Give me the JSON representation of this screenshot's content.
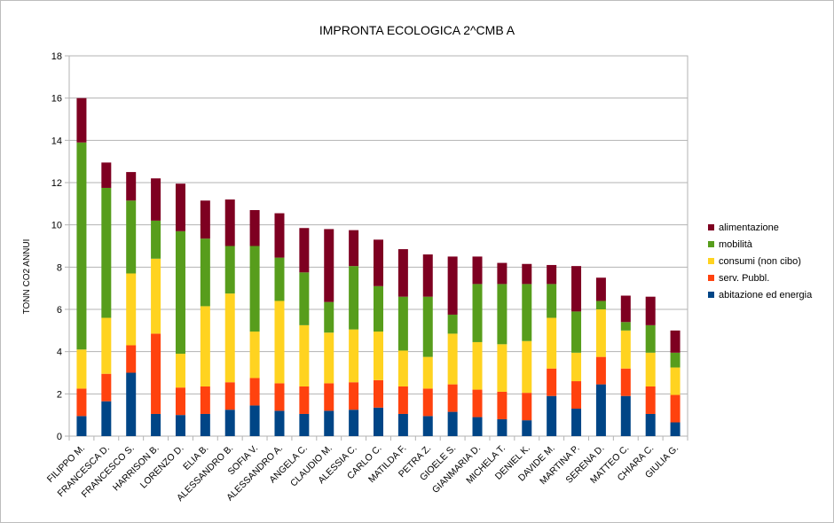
{
  "chart_data": {
    "type": "bar",
    "stacked": true,
    "title": "IMPRONTA ECOLOGICA 2^CMB A",
    "xlabel": "",
    "ylabel": "TONN CO2 ANNUI",
    "ylim": [
      0,
      18
    ],
    "yticks": [
      0,
      2,
      4,
      6,
      8,
      10,
      12,
      14,
      16,
      18
    ],
    "grid": true,
    "legend_position": "right",
    "categories": [
      "FILIPPO M.",
      "FRANCESCA D.",
      "FRANCESCO S.",
      "HARRISON B.",
      "LORENZO D.",
      "ELIA B.",
      "ALESSANDRO B.",
      "SOFIA V.",
      "ALESSANDRO A.",
      "ANGELA C.",
      "CLAUDIO M.",
      "ALESSIA C.",
      "CARLO C.",
      "MATILDA F.",
      "PETRA Z.",
      "GIOELE S.",
      "GIANMARIA D.",
      "MICHELA T.",
      "DENIEL K.",
      "DAVIDE M.",
      "MARTINA P.",
      "SERENA D.",
      "MATTEO C.",
      "CHIARA C.",
      "GIULIA G."
    ],
    "series": [
      {
        "name": "abitazione ed energia",
        "color": "#004586",
        "values": [
          0.95,
          1.65,
          3.0,
          1.05,
          1.0,
          1.05,
          1.25,
          1.45,
          1.2,
          1.05,
          1.2,
          1.25,
          1.35,
          1.05,
          0.95,
          1.15,
          0.9,
          0.8,
          0.75,
          1.9,
          1.3,
          2.45,
          1.9,
          1.05,
          0.65
        ]
      },
      {
        "name": "serv. Pubbl.",
        "color": "#ff420e",
        "values": [
          1.3,
          1.3,
          1.3,
          3.8,
          1.3,
          1.3,
          1.3,
          1.3,
          1.3,
          1.3,
          1.3,
          1.3,
          1.3,
          1.3,
          1.3,
          1.3,
          1.3,
          1.3,
          1.3,
          1.3,
          1.3,
          1.3,
          1.3,
          1.3,
          1.3
        ]
      },
      {
        "name": "consumi (non cibo)",
        "color": "#ffd320",
        "values": [
          1.85,
          2.65,
          3.4,
          3.55,
          1.6,
          3.8,
          4.2,
          2.2,
          3.9,
          2.9,
          2.4,
          2.5,
          2.3,
          1.7,
          1.5,
          2.4,
          2.25,
          2.25,
          2.45,
          2.4,
          1.35,
          2.25,
          1.8,
          1.6,
          1.3
        ]
      },
      {
        "name": "mobilità",
        "color": "#579d1c",
        "values": [
          9.8,
          6.15,
          3.45,
          1.8,
          5.8,
          3.2,
          2.25,
          4.05,
          2.05,
          2.5,
          1.45,
          3.0,
          2.15,
          2.55,
          2.85,
          0.9,
          2.75,
          2.85,
          2.7,
          1.6,
          1.95,
          0.4,
          0.4,
          1.3,
          0.7
        ]
      },
      {
        "name": "alimentazione",
        "color": "#7e0021",
        "values": [
          2.1,
          1.2,
          1.35,
          2.0,
          2.25,
          1.8,
          2.2,
          1.7,
          2.1,
          2.1,
          3.45,
          1.7,
          2.2,
          2.25,
          2.0,
          2.75,
          1.3,
          1.0,
          0.95,
          0.9,
          2.15,
          1.1,
          1.25,
          1.35,
          1.05
        ]
      }
    ]
  }
}
